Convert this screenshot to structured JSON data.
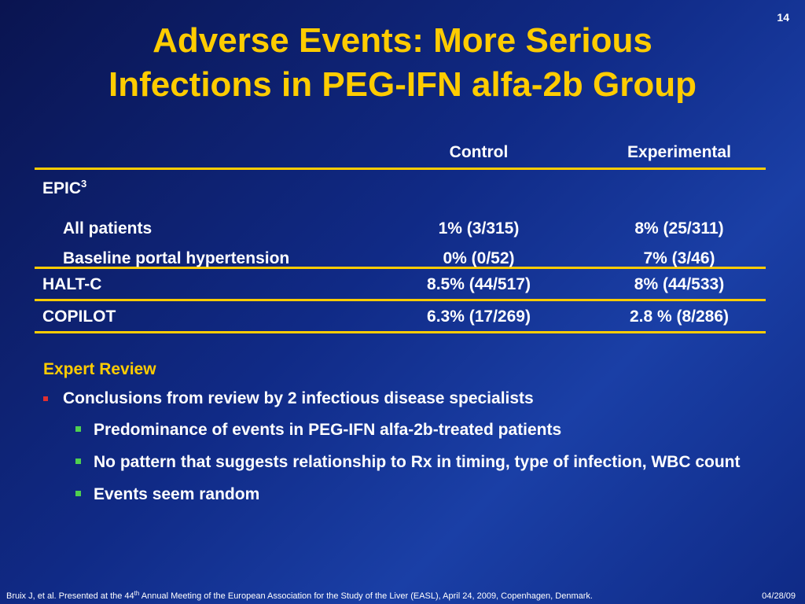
{
  "slide_number": "14",
  "title": {
    "line1": "Adverse Events: More Serious",
    "line2": "Infections in PEG-IFN alfa-2b Group"
  },
  "table": {
    "headers": {
      "control": "Control",
      "experimental": "Experimental"
    },
    "epic": {
      "label": "EPIC",
      "superscript": "3"
    },
    "rows": [
      {
        "label": "All patients",
        "control": "1% (3/315)",
        "experimental": "8% (25/311)"
      },
      {
        "label": "Baseline portal hypertension",
        "control": "0% (0/52)",
        "experimental": "7% (3/46)"
      },
      {
        "label": "HALT-C",
        "control": "8.5% (44/517)",
        "experimental": "8% (44/533)"
      },
      {
        "label": "COPILOT",
        "control": "6.3% (17/269)",
        "experimental": "2.8 % (8/286)"
      }
    ]
  },
  "review": {
    "heading": "Expert Review",
    "bullet": "Conclusions from review by 2 infectious disease specialists",
    "sub_bullets": [
      "Predominance of events in PEG-IFN alfa-2b-treated patients",
      "No pattern that suggests relationship to Rx in timing, type of infection, WBC count",
      "Events seem random"
    ]
  },
  "footer": {
    "citation_before": "Bruix J, et al. Presented at the 44",
    "citation_sup": "th",
    "citation_after": " Annual Meeting of the European Association for the Study of the Liver (EASL), April 24, 2009, Copenhagen, Denmark.",
    "date": "04/28/09"
  },
  "colors": {
    "title": "#ffcc00",
    "rule": "#ffcc00",
    "bullet_l1": "#e03030",
    "bullet_l2": "#4fd04f"
  }
}
